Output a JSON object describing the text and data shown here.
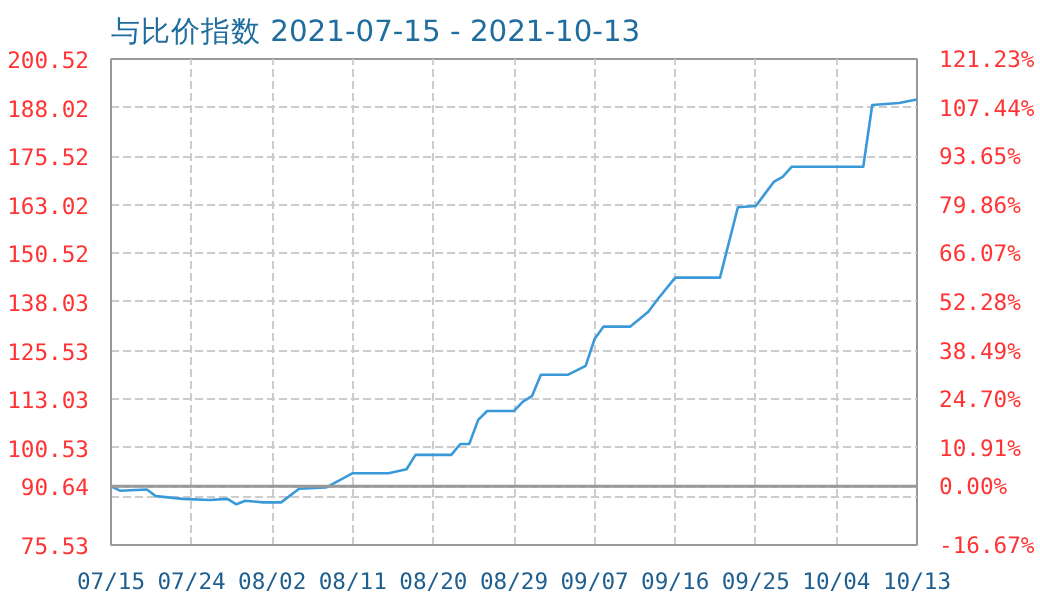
{
  "chart_data": {
    "type": "line",
    "title": "与比价指数 2021-07-15 - 2021-10-13",
    "x": [
      "2021-07-15",
      "2021-07-16",
      "2021-07-19",
      "2021-07-20",
      "2021-07-23",
      "2021-07-26",
      "2021-07-28",
      "2021-07-29",
      "2021-07-30",
      "2021-08-01",
      "2021-08-03",
      "2021-08-05",
      "2021-08-08",
      "2021-08-11",
      "2021-08-15",
      "2021-08-17",
      "2021-08-18",
      "2021-08-22",
      "2021-08-23",
      "2021-08-24",
      "2021-08-25",
      "2021-08-26",
      "2021-08-29",
      "2021-08-30",
      "2021-08-31",
      "2021-09-01",
      "2021-09-04",
      "2021-09-06",
      "2021-09-07",
      "2021-09-08",
      "2021-09-11",
      "2021-09-13",
      "2021-09-14",
      "2021-09-16",
      "2021-09-21",
      "2021-09-23",
      "2021-09-25",
      "2021-09-27",
      "2021-09-28",
      "2021-09-29",
      "2021-10-07",
      "2021-10-08",
      "2021-10-11",
      "2021-10-13"
    ],
    "series": [
      {
        "color": "#3a9ad9",
        "values": [
          90.6,
          89.5,
          89.8,
          88.1,
          87.4,
          87.1,
          87.4,
          86.0,
          86.9,
          86.5,
          86.5,
          90.0,
          90.3,
          94.0,
          94.0,
          95.0,
          98.7,
          98.7,
          101.5,
          101.5,
          107.7,
          110.0,
          110.0,
          112.4,
          113.8,
          119.3,
          119.3,
          121.6,
          128.5,
          131.7,
          131.7,
          135.5,
          138.6,
          144.3,
          144.3,
          162.4,
          162.7,
          168.9,
          170.2,
          172.8,
          172.8,
          188.7,
          189.2,
          190.1
        ]
      }
    ],
    "xlim": [
      "2021-07-15",
      "2021-10-13"
    ],
    "xticks": [
      {
        "value": "2021-07-15",
        "label": "07/15"
      },
      {
        "value": "2021-07-24",
        "label": "07/24"
      },
      {
        "value": "2021-08-02",
        "label": "08/02"
      },
      {
        "value": "2021-08-11",
        "label": "08/11"
      },
      {
        "value": "2021-08-20",
        "label": "08/20"
      },
      {
        "value": "2021-08-29",
        "label": "08/29"
      },
      {
        "value": "2021-09-07",
        "label": "09/07"
      },
      {
        "value": "2021-09-16",
        "label": "09/16"
      },
      {
        "value": "2021-09-25",
        "label": "09/25"
      },
      {
        "value": "2021-10-04",
        "label": "10/04"
      },
      {
        "value": "2021-10-13",
        "label": "10/13"
      }
    ],
    "ylim": [
      75.53,
      200.52
    ],
    "yticks": [
      75.53,
      {
        "value": 88.03,
        "label": null
      },
      90.64,
      100.53,
      113.03,
      125.53,
      138.03,
      150.52,
      163.02,
      175.52,
      188.02,
      200.52
    ],
    "y2lim": [
      -16.67,
      121.23
    ],
    "y2ticks": [
      {
        "value": -16.67,
        "label": "-16.67%"
      },
      {
        "value": 0,
        "label": "0.00%"
      },
      {
        "value": 10.91,
        "label": "10.91%"
      },
      {
        "value": 24.7,
        "label": "24.70%"
      },
      {
        "value": 38.49,
        "label": "38.49%"
      },
      {
        "value": 52.28,
        "label": "52.28%"
      },
      {
        "value": 66.07,
        "label": "66.07%"
      },
      {
        "value": 79.86,
        "label": "79.86%"
      },
      {
        "value": 93.65,
        "label": "93.65%"
      },
      {
        "value": 107.44,
        "label": "107.44%"
      },
      {
        "value": 121.23,
        "label": "121.23%"
      }
    ],
    "ref_lines": [
      {
        "axis": "y",
        "value": 90.64,
        "color": "#999999",
        "line_style": "solid"
      }
    ],
    "grid": true,
    "marker": "none",
    "line_style": "solid"
  }
}
